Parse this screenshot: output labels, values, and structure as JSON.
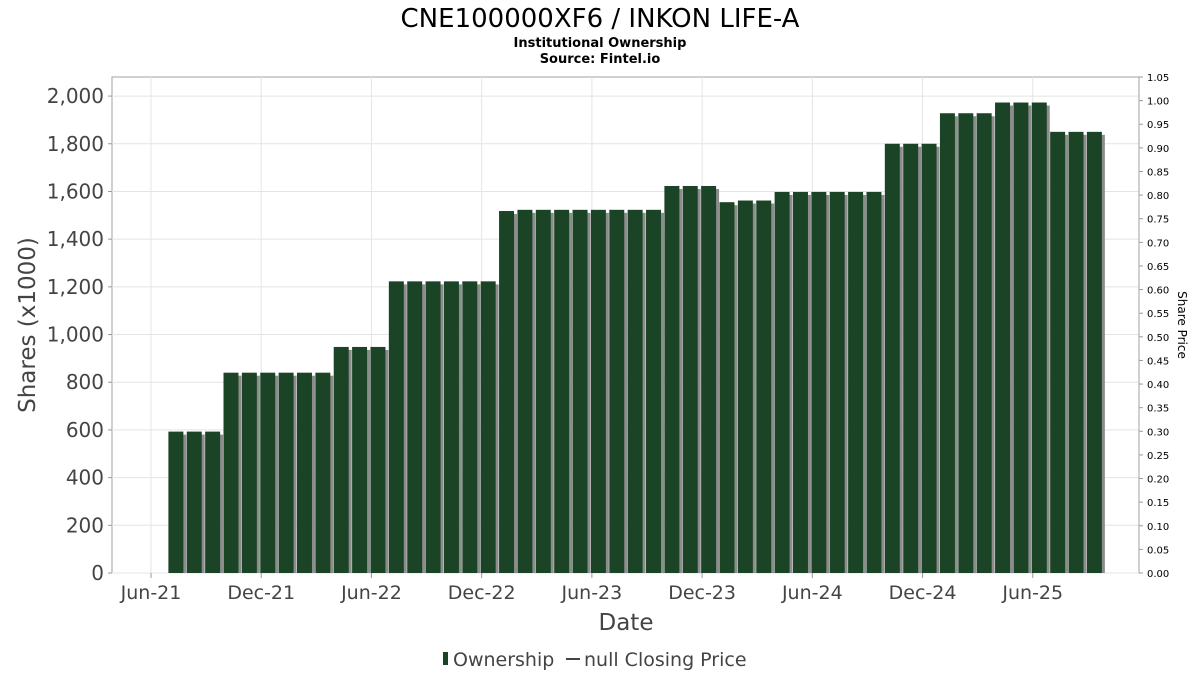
{
  "chart_data": {
    "type": "bar",
    "title": "CNE100000XF6 / INKON LIFE-A",
    "subtitles": [
      "Institutional Ownership",
      "Source: Fintel.io"
    ],
    "xlabel": "Date",
    "ylabel": "Shares (x1000)",
    "y2label": "Share Price",
    "ylim": [
      0,
      2080
    ],
    "y_ticks": [
      "0",
      "200",
      "400",
      "600",
      "800",
      "1,000",
      "1,200",
      "1,400",
      "1,600",
      "1,800",
      "2,000"
    ],
    "y2lim": [
      0,
      1.05
    ],
    "y2_ticks": [
      "0.00",
      "0.05",
      "0.10",
      "0.15",
      "0.20",
      "0.25",
      "0.30",
      "0.35",
      "0.40",
      "0.45",
      "0.50",
      "0.55",
      "0.60",
      "0.65",
      "0.70",
      "0.75",
      "0.80",
      "0.85",
      "0.90",
      "0.95",
      "1.00",
      "1.05"
    ],
    "x_ticks": [
      "Jun-21",
      "Dec-21",
      "Jun-22",
      "Dec-22",
      "Jun-23",
      "Dec-23",
      "Jun-24",
      "Dec-24",
      "Jun-25"
    ],
    "grid": true,
    "legend_position": "bottom",
    "legend": [
      "Ownership",
      "null Closing Price"
    ],
    "colors": {
      "bar": "#1b4325",
      "bar_shadow": "#8c8c8c",
      "grid": "#e4e4e4"
    },
    "series": [
      {
        "name": "Ownership",
        "x": [
          "2021-07",
          "2021-08",
          "2021-09",
          "2021-10",
          "2021-11",
          "2021-12",
          "2022-01",
          "2022-02",
          "2022-03",
          "2022-04",
          "2022-05",
          "2022-06",
          "2022-07",
          "2022-08",
          "2022-09",
          "2022-10",
          "2022-11",
          "2022-12",
          "2023-01",
          "2023-02",
          "2023-03",
          "2023-04",
          "2023-05",
          "2023-06",
          "2023-07",
          "2023-08",
          "2023-09",
          "2023-10",
          "2023-11",
          "2023-12",
          "2024-01",
          "2024-02",
          "2024-03",
          "2024-04",
          "2024-05",
          "2024-06",
          "2024-07",
          "2024-08",
          "2024-09",
          "2024-10",
          "2024-11",
          "2024-12",
          "2025-01",
          "2025-02",
          "2025-03",
          "2025-04",
          "2025-05",
          "2025-06",
          "2025-07",
          "2025-08",
          "2025-09"
        ],
        "values": [
          593,
          593,
          593,
          840,
          840,
          840,
          840,
          840,
          840,
          948,
          948,
          948,
          1223,
          1223,
          1223,
          1223,
          1223,
          1223,
          1518,
          1523,
          1523,
          1523,
          1523,
          1523,
          1523,
          1523,
          1523,
          1623,
          1623,
          1623,
          1555,
          1562,
          1562,
          1598,
          1598,
          1598,
          1598,
          1598,
          1598,
          1800,
          1800,
          1800,
          1928,
          1928,
          1928,
          1973,
          1973,
          1973,
          1850,
          1850,
          1850
        ]
      }
    ]
  }
}
